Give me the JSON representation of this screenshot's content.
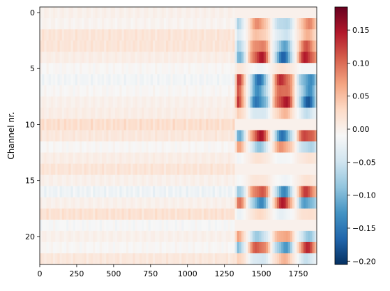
{
  "chart_data": {
    "type": "heatmap",
    "title": "",
    "xlabel": "",
    "ylabel": "Channel nr.",
    "x_range": [
      0,
      1875
    ],
    "y_range": [
      -0.5,
      22.5
    ],
    "y_inverted": true,
    "x_ticks": [
      0,
      250,
      500,
      750,
      1000,
      1250,
      1500,
      1750
    ],
    "x_tick_labels": [
      "0",
      "250",
      "500",
      "750",
      "1000",
      "1250",
      "1500",
      "1750"
    ],
    "y_ticks": [
      0,
      5,
      10,
      15,
      20
    ],
    "y_tick_labels": [
      "0",
      "5",
      "10",
      "15",
      "20"
    ],
    "colormap": "RdBu_r",
    "colorbar": {
      "range": [
        -0.205,
        0.185
      ],
      "ticks": [
        0.15,
        0.1,
        0.05,
        0.0,
        -0.05,
        -0.1,
        -0.15,
        -0.2
      ],
      "tick_labels": [
        "0.15",
        "0.10",
        "0.05",
        "0.00",
        "−0.05",
        "−0.10",
        "−0.15",
        "−0.20"
      ]
    },
    "event_onset_sample": 1320,
    "channel_pre_event_values": [
      0.0,
      -0.005,
      0.02,
      0.02,
      0.005,
      -0.01,
      -0.02,
      -0.01,
      0.0,
      0.005,
      0.03,
      0.015,
      -0.01,
      0.005,
      0.02,
      0.0,
      -0.025,
      0.0,
      0.025,
      -0.015,
      0.0,
      -0.01,
      0.015
    ],
    "channel_response_values": [
      0.0,
      -0.09,
      -0.06,
      -0.12,
      -0.17,
      0.02,
      0.16,
      0.14,
      0.18,
      0.06,
      0.0,
      -0.16,
      0.09,
      -0.02,
      0.0,
      -0.02,
      -0.14,
      0.15,
      -0.03,
      0.0,
      0.09,
      -0.14,
      0.06
    ]
  },
  "colors": {
    "axis": "#000000",
    "cmap_stops": [
      "#053061",
      "#2166ac",
      "#4393c3",
      "#92c5de",
      "#d1e5f0",
      "#f7f7f7",
      "#fddbc7",
      "#f4a582",
      "#d6604d",
      "#b2182b",
      "#67001f"
    ]
  }
}
